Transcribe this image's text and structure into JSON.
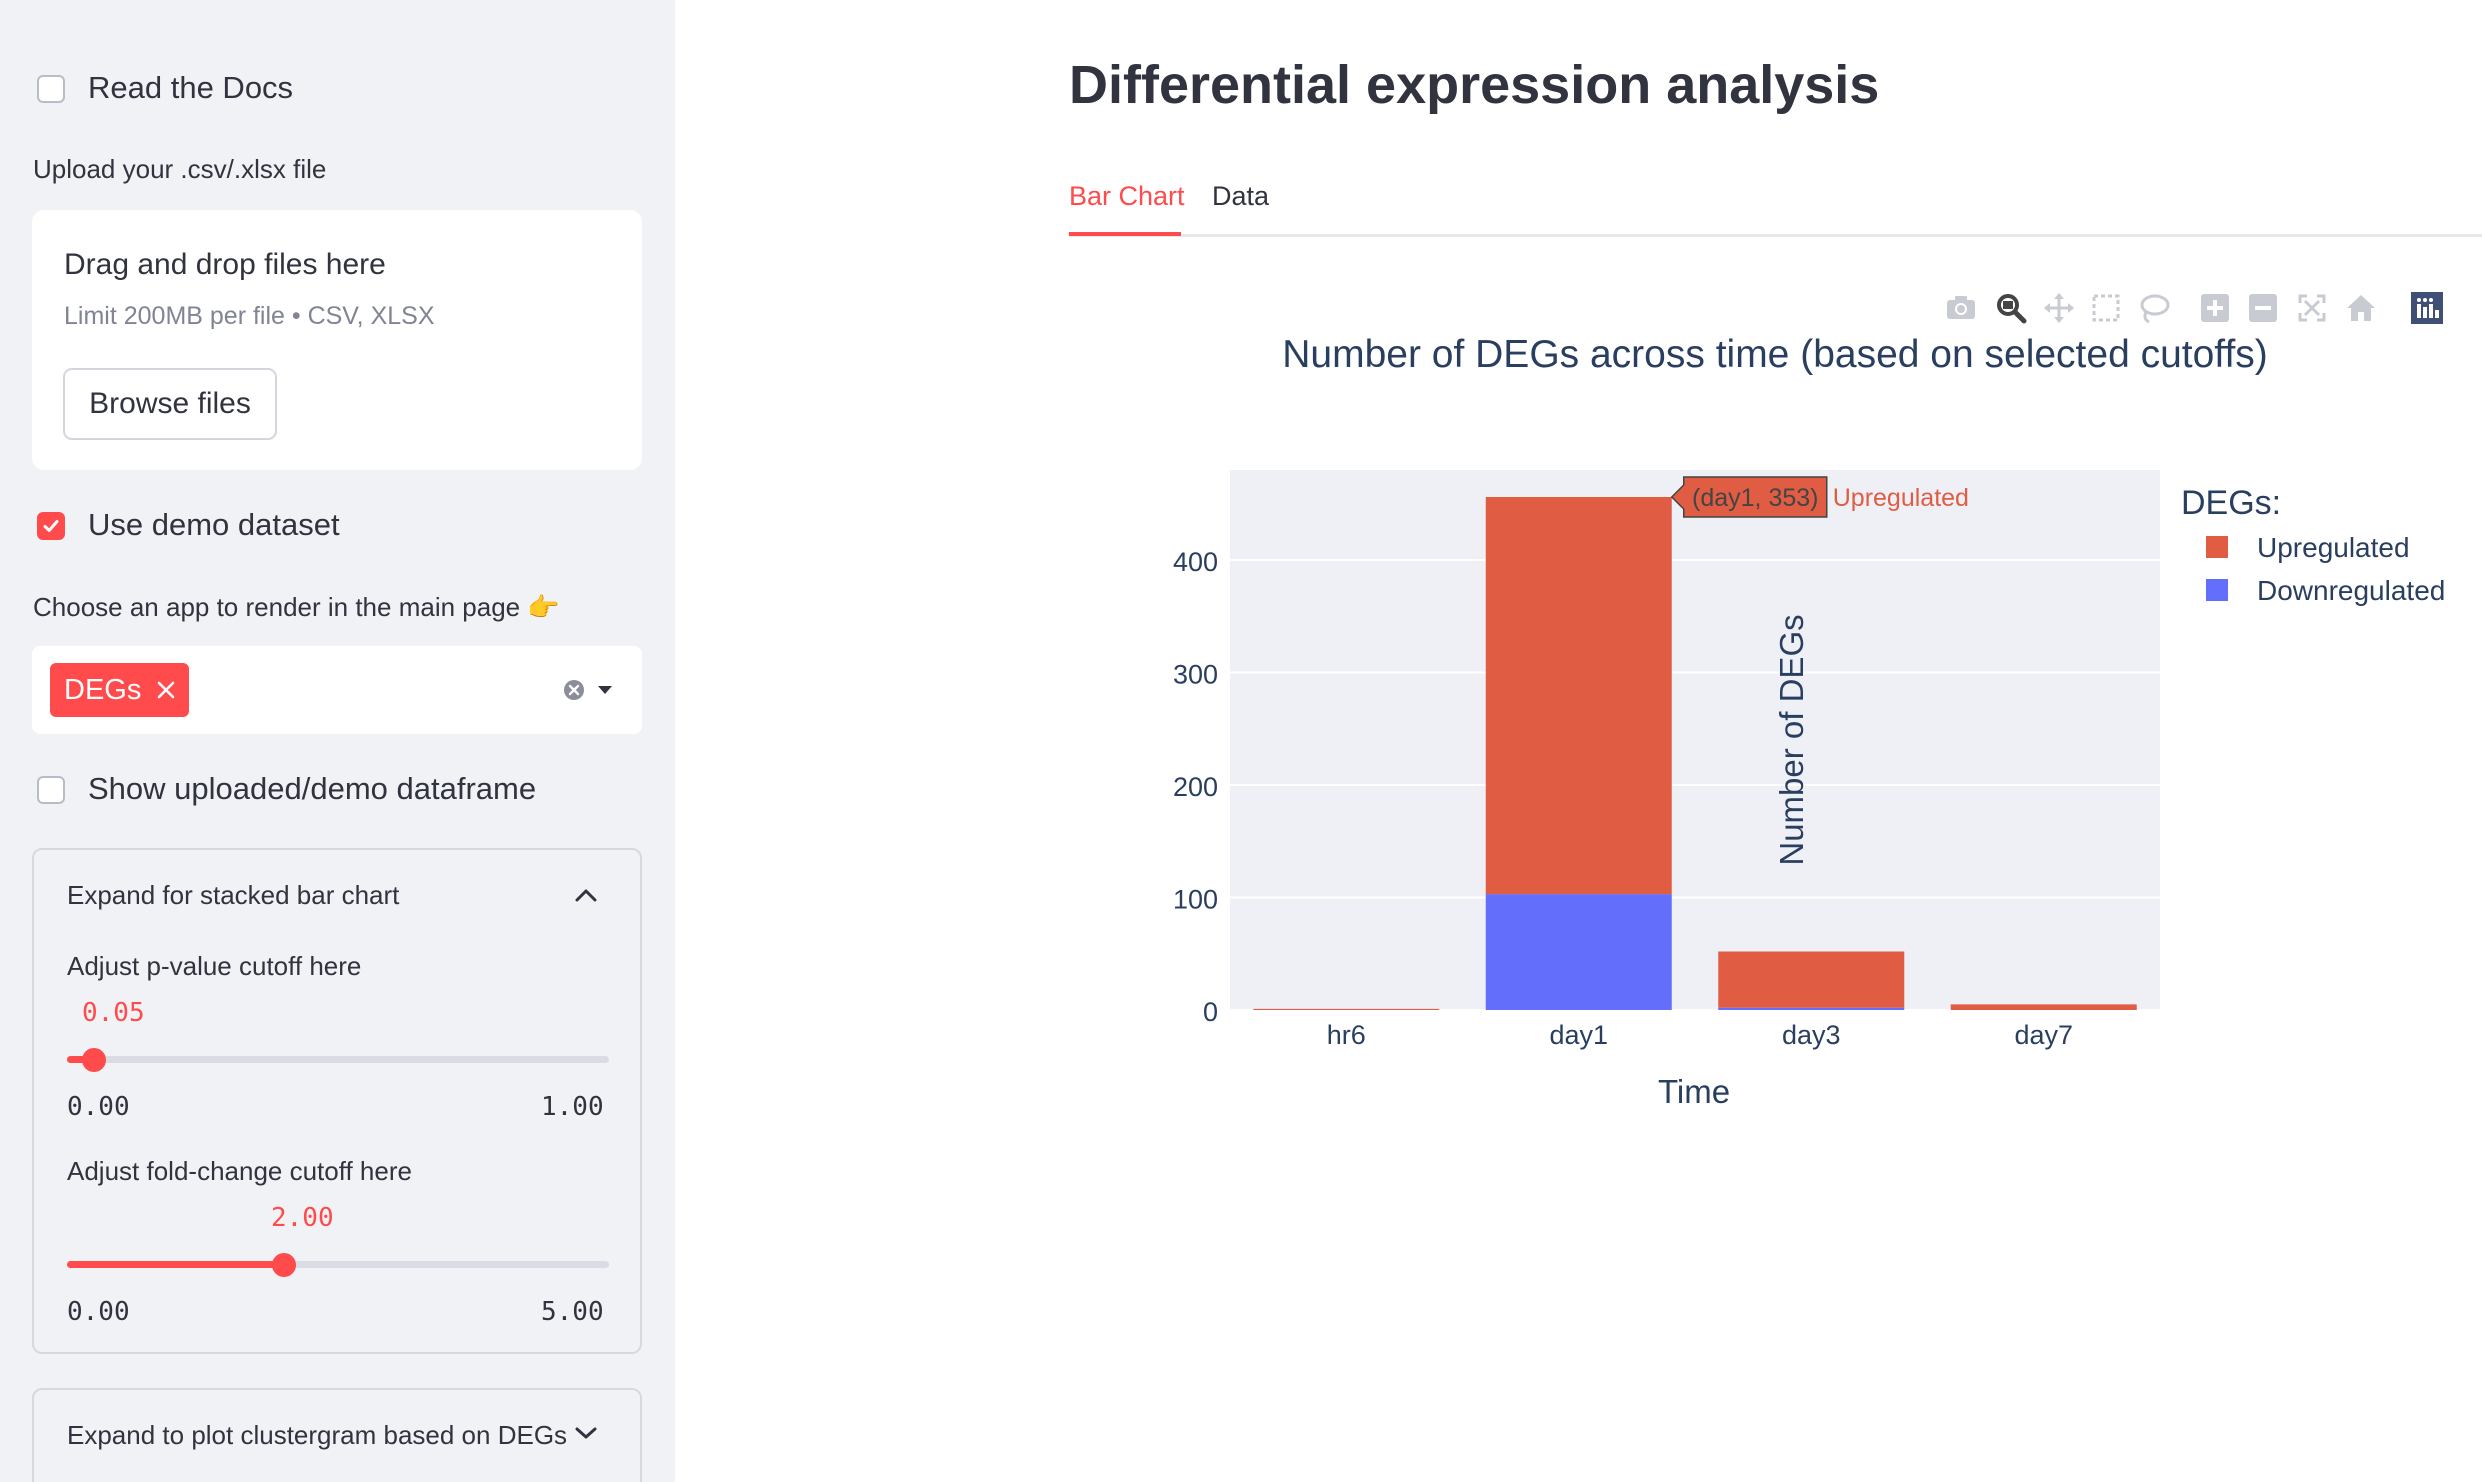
{
  "sidebar": {
    "read_docs": {
      "label": "Read the Docs",
      "checked": false
    },
    "upload": {
      "label": "Upload your .csv/.xlsx file",
      "dropzone_title": "Drag and drop files here",
      "dropzone_hint": "Limit 200MB per file • CSV, XLSX",
      "browse_label": "Browse files"
    },
    "demo": {
      "label": "Use demo dataset",
      "checked": true
    },
    "app_select": {
      "label": "Choose an app to render in the main page 👉",
      "selected": [
        "DEGs"
      ]
    },
    "show_df": {
      "label": "Show uploaded/demo dataframe",
      "checked": false
    },
    "bar_expander": {
      "title": "Expand for stacked bar chart",
      "pval": {
        "label": "Adjust p-value cutoff here",
        "value": "0.05",
        "min": "0.00",
        "max": "1.00",
        "fraction": 0.05
      },
      "fc": {
        "label": "Adjust fold-change cutoff here",
        "value": "2.00",
        "min": "0.00",
        "max": "5.00",
        "fraction": 0.4
      }
    },
    "cluster_expander": {
      "title": "Expand to plot clustergram based on DEGs"
    }
  },
  "main": {
    "title": "Differential expression analysis",
    "tabs": [
      {
        "label": "Bar Chart",
        "active": true
      },
      {
        "label": "Data",
        "active": false
      }
    ],
    "toolbar_icons": [
      "camera-icon",
      "zoom-icon",
      "pan-icon",
      "box-select-icon",
      "lasso-icon",
      "zoom-in-icon",
      "zoom-out-icon",
      "autoscale-icon",
      "reset-axes-icon",
      "plotly-logo-icon"
    ]
  },
  "colors": {
    "accent": "#ff4b4b",
    "up": "#e05d44",
    "down": "#636efa",
    "plot_bg": "#eff0f5"
  },
  "chart_data": {
    "type": "bar",
    "title": "Number of DEGs across time (based on selected cutoffs)",
    "xlabel": "Time",
    "ylabel": "Number of DEGs",
    "categories": [
      "hr6",
      "day1",
      "day3",
      "day7"
    ],
    "series": [
      {
        "name": "Downregulated",
        "values": [
          0,
          103,
          2,
          0
        ],
        "color": "#636efa"
      },
      {
        "name": "Upregulated",
        "values": [
          1,
          353,
          50,
          5
        ],
        "color": "#e05d44"
      }
    ],
    "ylim": [
      0,
      480
    ],
    "yticks": [
      0,
      100,
      200,
      300,
      400
    ],
    "barmode": "stack",
    "legend_title": "DEGs:",
    "legend": [
      "Upregulated",
      "Downregulated"
    ],
    "legend_position": "right",
    "hover": {
      "text": "(day1, 353)",
      "series": "Upregulated"
    }
  }
}
